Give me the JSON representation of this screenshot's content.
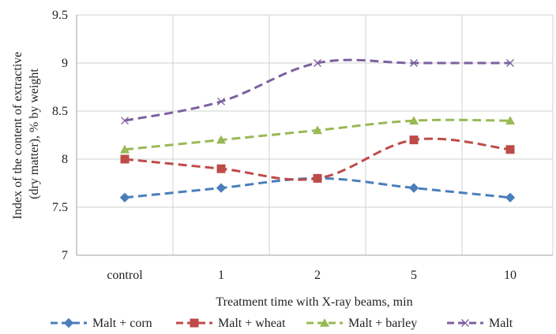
{
  "chart_data": {
    "type": "line",
    "categories": [
      "control",
      "1",
      "2",
      "5",
      "10"
    ],
    "xlabel": "Treatment time with X-ray beams, min",
    "ylabel_lines": [
      "Index of the content of extractive",
      "(dry matter), % by weight"
    ],
    "ylim": [
      7,
      9.5
    ],
    "yticks": [
      7,
      7.5,
      8,
      8.5,
      9,
      9.5
    ],
    "ytick_labels": [
      "7",
      "7.5",
      "8",
      "8.5",
      "9",
      "9.5"
    ],
    "grid": true,
    "legend_position": "bottom",
    "series": [
      {
        "name": "Malt + corn",
        "values": [
          7.6,
          7.7,
          7.8,
          7.7,
          7.6
        ],
        "color": "#4a7ebb",
        "marker": "diamond"
      },
      {
        "name": "Malt + wheat",
        "values": [
          8.0,
          7.9,
          7.8,
          8.2,
          8.1
        ],
        "color": "#be4b48",
        "marker": "square"
      },
      {
        "name": "Malt + barley",
        "values": [
          8.1,
          8.2,
          8.3,
          8.4,
          8.4
        ],
        "color": "#98b954",
        "marker": "triangle"
      },
      {
        "name": "Malt",
        "values": [
          8.4,
          8.6,
          9.0,
          9.0,
          9.0
        ],
        "color": "#7d60a0",
        "marker": "x"
      }
    ]
  }
}
